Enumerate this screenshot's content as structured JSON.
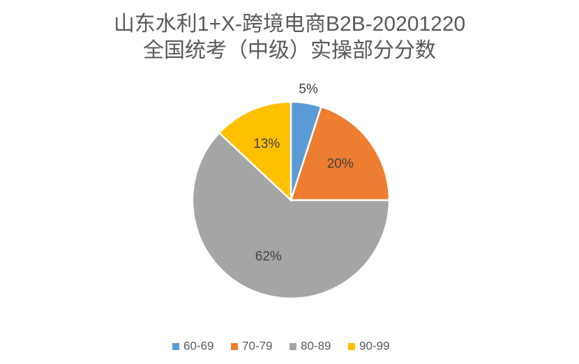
{
  "chart_data": {
    "type": "pie",
    "title": [
      "山东水利1+X-跨境电商B2B-20201220",
      "全国统考（中级）实操部分分数"
    ],
    "categories": [
      "60-69",
      "70-79",
      "80-89",
      "90-99"
    ],
    "values": [
      5,
      20,
      62,
      13
    ],
    "value_labels": [
      "5%",
      "20%",
      "62%",
      "13%"
    ],
    "colors": [
      "#5b9bd5",
      "#ed7d31",
      "#a5a5a5",
      "#ffc000"
    ],
    "legend": "bottom"
  }
}
